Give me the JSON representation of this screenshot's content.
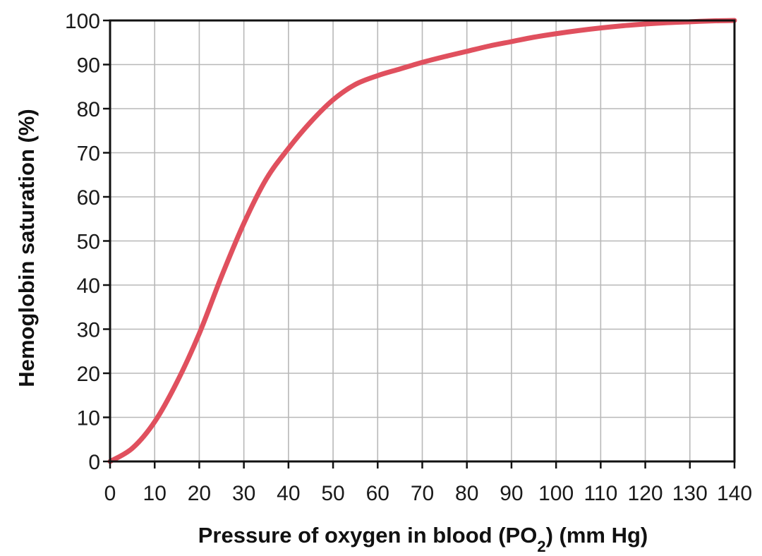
{
  "chart_data": {
    "type": "line",
    "title": "",
    "xlabel": "Pressure of oxygen in blood (PO",
    "xlabel_subscript": "2",
    "xlabel_suffix": ") (mm Hg)",
    "ylabel": "Hemoglobin saturation (%)",
    "xlim": [
      0,
      140
    ],
    "ylim": [
      0,
      100
    ],
    "xticks": [
      0,
      10,
      20,
      30,
      40,
      50,
      60,
      70,
      80,
      90,
      100,
      110,
      120,
      130,
      140
    ],
    "yticks": [
      0,
      10,
      20,
      30,
      40,
      50,
      60,
      70,
      80,
      90,
      100
    ],
    "grid": true,
    "legend": "none",
    "series": [
      {
        "color": "#e0505e",
        "x": [
          0,
          5,
          10,
          15,
          20,
          25,
          30,
          35,
          40,
          45,
          50,
          55,
          60,
          65,
          70,
          75,
          80,
          85,
          90,
          95,
          100,
          105,
          110,
          115,
          120,
          125,
          130,
          135,
          140
        ],
        "y": [
          0,
          3,
          9,
          18,
          29,
          42,
          54,
          64,
          71,
          77,
          82,
          85.5,
          87.5,
          89,
          90.5,
          91.8,
          93,
          94.2,
          95.2,
          96.2,
          97,
          97.7,
          98.3,
          98.8,
          99.2,
          99.5,
          99.7,
          99.9,
          100
        ]
      }
    ]
  },
  "colors": {
    "grid": "#b8b8b8",
    "axis": "#111111",
    "background": "#ffffff"
  }
}
